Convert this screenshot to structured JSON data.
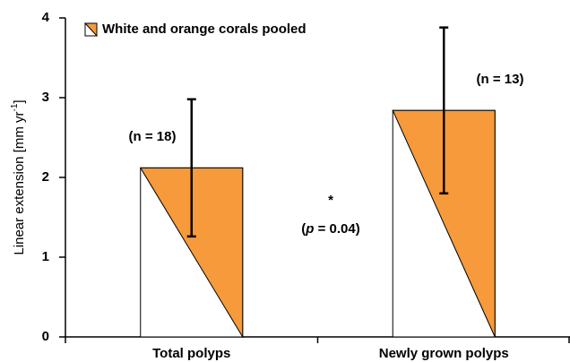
{
  "chart_data": {
    "type": "bar",
    "y_label": {
      "text": "Linear extension [mm yr",
      "superscript": "-1",
      "end": "]"
    },
    "categories": [
      "Total polyps",
      "Newly grown polyps"
    ],
    "series": [
      {
        "name": "White and orange corals pooled",
        "color": "#f79a3b",
        "values": [
          2.12,
          2.84
        ],
        "errors": [
          0.86,
          1.04
        ]
      }
    ],
    "annotations": [
      "(n = 18)",
      "(n = 13)",
      "*"
    ],
    "p_note": {
      "open": "(",
      "italic": "p",
      "rest": " = 0.04)"
    },
    "ylim": [
      0,
      4
    ],
    "yticks": [
      0,
      1,
      2,
      3,
      4
    ],
    "grid": false,
    "legend": "upper left"
  }
}
